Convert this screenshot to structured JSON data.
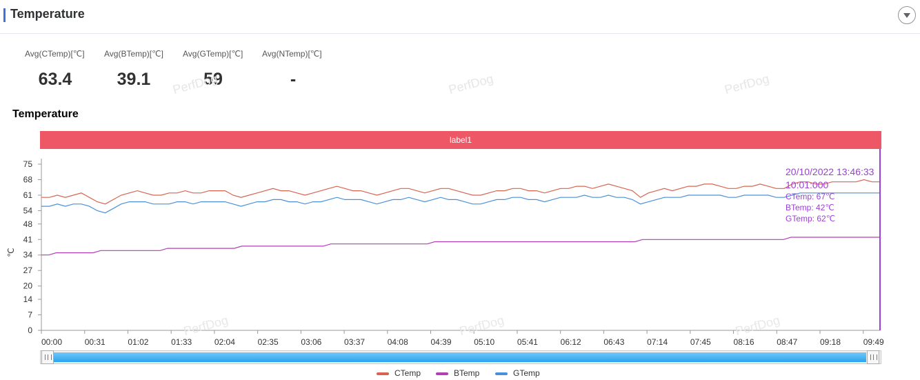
{
  "header": {
    "title": "Temperature",
    "collapse_icon": "chevron-down-icon"
  },
  "stats": [
    {
      "label": "Avg(CTemp)[℃]",
      "value": "63.4"
    },
    {
      "label": "Avg(BTemp)[℃]",
      "value": "39.1"
    },
    {
      "label": "Avg(GTemp)[℃]",
      "value": "59"
    },
    {
      "label": "Avg(NTemp)[℃]",
      "value": "-"
    }
  ],
  "watermark": "PerfDog",
  "chart_data": {
    "type": "line",
    "title": "Temperature",
    "ylabel": "℃",
    "ylim": [
      0,
      75
    ],
    "yticks": [
      0,
      7,
      14,
      20,
      27,
      34,
      41,
      48,
      54,
      61,
      68,
      75
    ],
    "x_ticks": [
      "00:00",
      "00:31",
      "01:02",
      "01:33",
      "02:04",
      "02:35",
      "03:06",
      "03:37",
      "04:08",
      "04:39",
      "05:10",
      "05:41",
      "06:12",
      "06:43",
      "07:14",
      "07:45",
      "08:16",
      "08:47",
      "09:18",
      "09:49"
    ],
    "x_tick_seconds": 31,
    "x_max_seconds": 601,
    "band_label": "label1",
    "series": [
      {
        "name": "CTemp",
        "color": "#d9634f",
        "values": [
          60,
          60,
          61,
          60,
          61,
          62,
          60,
          58,
          57,
          59,
          61,
          62,
          63,
          62,
          61,
          61,
          62,
          62,
          63,
          62,
          62,
          63,
          63,
          63,
          61,
          60,
          61,
          62,
          63,
          64,
          63,
          63,
          62,
          61,
          62,
          63,
          64,
          65,
          64,
          63,
          63,
          62,
          61,
          62,
          63,
          64,
          64,
          63,
          62,
          63,
          64,
          64,
          63,
          62,
          61,
          61,
          62,
          63,
          63,
          64,
          64,
          63,
          63,
          62,
          63,
          64,
          64,
          65,
          65,
          64,
          65,
          66,
          65,
          64,
          63,
          60,
          62,
          63,
          64,
          63,
          64,
          65,
          65,
          66,
          66,
          65,
          64,
          64,
          65,
          65,
          66,
          65,
          64,
          64,
          66,
          67,
          67,
          66,
          66,
          67,
          67,
          67,
          67,
          68,
          67,
          67
        ]
      },
      {
        "name": "BTemp",
        "color": "#b43fb4",
        "values": [
          34,
          34,
          35,
          35,
          35,
          35,
          35,
          35,
          36,
          36,
          36,
          36,
          36,
          36,
          36,
          36,
          36,
          37,
          37,
          37,
          37,
          37,
          37,
          37,
          37,
          37,
          37,
          38,
          38,
          38,
          38,
          38,
          38,
          38,
          38,
          38,
          38,
          38,
          38,
          39,
          39,
          39,
          39,
          39,
          39,
          39,
          39,
          39,
          39,
          39,
          39,
          39,
          39,
          40,
          40,
          40,
          40,
          40,
          40,
          40,
          40,
          40,
          40,
          40,
          40,
          40,
          40,
          40,
          40,
          40,
          40,
          40,
          40,
          40,
          40,
          40,
          40,
          40,
          40,
          40,
          40,
          41,
          41,
          41,
          41,
          41,
          41,
          41,
          41,
          41,
          41,
          41,
          41,
          41,
          41,
          41,
          41,
          41,
          41,
          41,
          41,
          42,
          42,
          42,
          42,
          42,
          42,
          42,
          42,
          42,
          42,
          42,
          42,
          42
        ]
      },
      {
        "name": "GTemp",
        "color": "#4a90d9",
        "values": [
          56,
          56,
          57,
          56,
          57,
          57,
          56,
          54,
          53,
          55,
          57,
          58,
          58,
          58,
          57,
          57,
          57,
          58,
          58,
          57,
          58,
          58,
          58,
          58,
          57,
          56,
          57,
          58,
          58,
          59,
          59,
          58,
          58,
          57,
          58,
          58,
          59,
          60,
          59,
          59,
          59,
          58,
          57,
          58,
          59,
          59,
          60,
          59,
          58,
          59,
          60,
          59,
          59,
          58,
          57,
          57,
          58,
          59,
          59,
          60,
          60,
          59,
          59,
          58,
          59,
          60,
          60,
          60,
          61,
          60,
          60,
          61,
          60,
          60,
          59,
          57,
          58,
          59,
          60,
          60,
          60,
          61,
          61,
          61,
          61,
          61,
          60,
          60,
          61,
          61,
          61,
          61,
          60,
          60,
          61,
          62,
          62,
          62,
          62,
          62,
          62,
          62,
          62,
          62,
          62,
          62
        ]
      }
    ],
    "tooltip": {
      "time": "20/10/2022 13:46:33",
      "elapsed": "10:01:000",
      "lines": [
        "CTemp: 67℃",
        "BTemp: 42℃",
        "GTemp: 62℃"
      ]
    },
    "legend": [
      "CTemp",
      "BTemp",
      "GTemp"
    ],
    "legend_position": "bottom-center",
    "range_slider": {
      "start": 0,
      "end": 1
    }
  }
}
